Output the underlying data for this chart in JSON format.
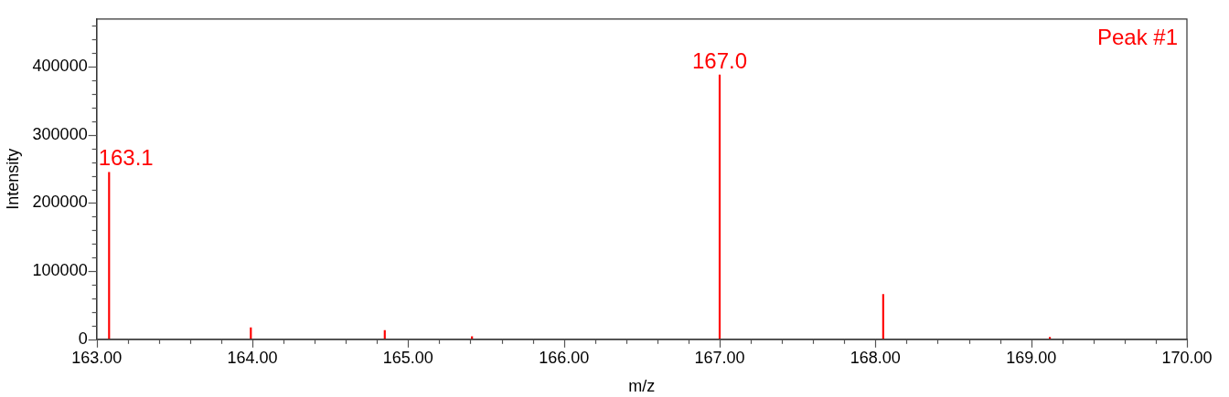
{
  "chart_data": {
    "type": "bar",
    "xlabel": "m/z",
    "ylabel": "Intensity",
    "x": [
      163.08,
      163.99,
      164.85,
      165.41,
      167.0,
      168.05,
      169.12
    ],
    "series": [
      {
        "color": "#ff0000",
        "values": [
          245000,
          17000,
          13000,
          4000,
          388000,
          66000,
          3000
        ]
      }
    ],
    "xlim": [
      163,
      170
    ],
    "xticks": [
      {
        "value": 163,
        "label": "163.00"
      },
      {
        "value": 163.2,
        "label": null
      },
      {
        "value": 163.4,
        "label": null
      },
      {
        "value": 163.6,
        "label": null
      },
      {
        "value": 163.8,
        "label": null
      },
      {
        "value": 164,
        "label": "164.00"
      },
      {
        "value": 164.2,
        "label": null
      },
      {
        "value": 164.4,
        "label": null
      },
      {
        "value": 164.6,
        "label": null
      },
      {
        "value": 164.8,
        "label": null
      },
      {
        "value": 165,
        "label": "165.00"
      },
      {
        "value": 165.2,
        "label": null
      },
      {
        "value": 165.4,
        "label": null
      },
      {
        "value": 165.6,
        "label": null
      },
      {
        "value": 165.8,
        "label": null
      },
      {
        "value": 166,
        "label": "166.00"
      },
      {
        "value": 166.2,
        "label": null
      },
      {
        "value": 166.4,
        "label": null
      },
      {
        "value": 166.6,
        "label": null
      },
      {
        "value": 166.8,
        "label": null
      },
      {
        "value": 167,
        "label": "167.00"
      },
      {
        "value": 167.2,
        "label": null
      },
      {
        "value": 167.4,
        "label": null
      },
      {
        "value": 167.6,
        "label": null
      },
      {
        "value": 167.8,
        "label": null
      },
      {
        "value": 168,
        "label": "168.00"
      },
      {
        "value": 168.2,
        "label": null
      },
      {
        "value": 168.4,
        "label": null
      },
      {
        "value": 168.6,
        "label": null
      },
      {
        "value": 168.8,
        "label": null
      },
      {
        "value": 169,
        "label": "169.00"
      },
      {
        "value": 169.2,
        "label": null
      },
      {
        "value": 169.4,
        "label": null
      },
      {
        "value": 169.6,
        "label": null
      },
      {
        "value": 169.8,
        "label": null
      },
      {
        "value": 170,
        "label": "170.00"
      }
    ],
    "ylim": [
      0,
      470000
    ],
    "yticks": [
      0,
      {
        "value": 20000,
        "label": null
      },
      {
        "value": 40000,
        "label": null
      },
      {
        "value": 60000,
        "label": null
      },
      {
        "value": 80000,
        "label": null
      },
      100000,
      {
        "value": 120000,
        "label": null
      },
      {
        "value": 140000,
        "label": null
      },
      {
        "value": 160000,
        "label": null
      },
      {
        "value": 180000,
        "label": null
      },
      200000,
      {
        "value": 220000,
        "label": null
      },
      {
        "value": 240000,
        "label": null
      },
      {
        "value": 260000,
        "label": null
      },
      {
        "value": 280000,
        "label": null
      },
      300000,
      {
        "value": 320000,
        "label": null
      },
      {
        "value": 340000,
        "label": null
      },
      {
        "value": 360000,
        "label": null
      },
      {
        "value": 380000,
        "label": null
      },
      400000,
      {
        "value": 420000,
        "label": null
      },
      {
        "value": 440000,
        "label": null
      },
      {
        "value": 460000,
        "label": null
      }
    ],
    "annotations": [
      {
        "text": "163.1",
        "x": 163.08,
        "y": 245000
      },
      {
        "text": "167.0",
        "x": 167.0,
        "y": 388000
      },
      "Peak #1"
    ],
    "grid": false,
    "legend": false
  }
}
